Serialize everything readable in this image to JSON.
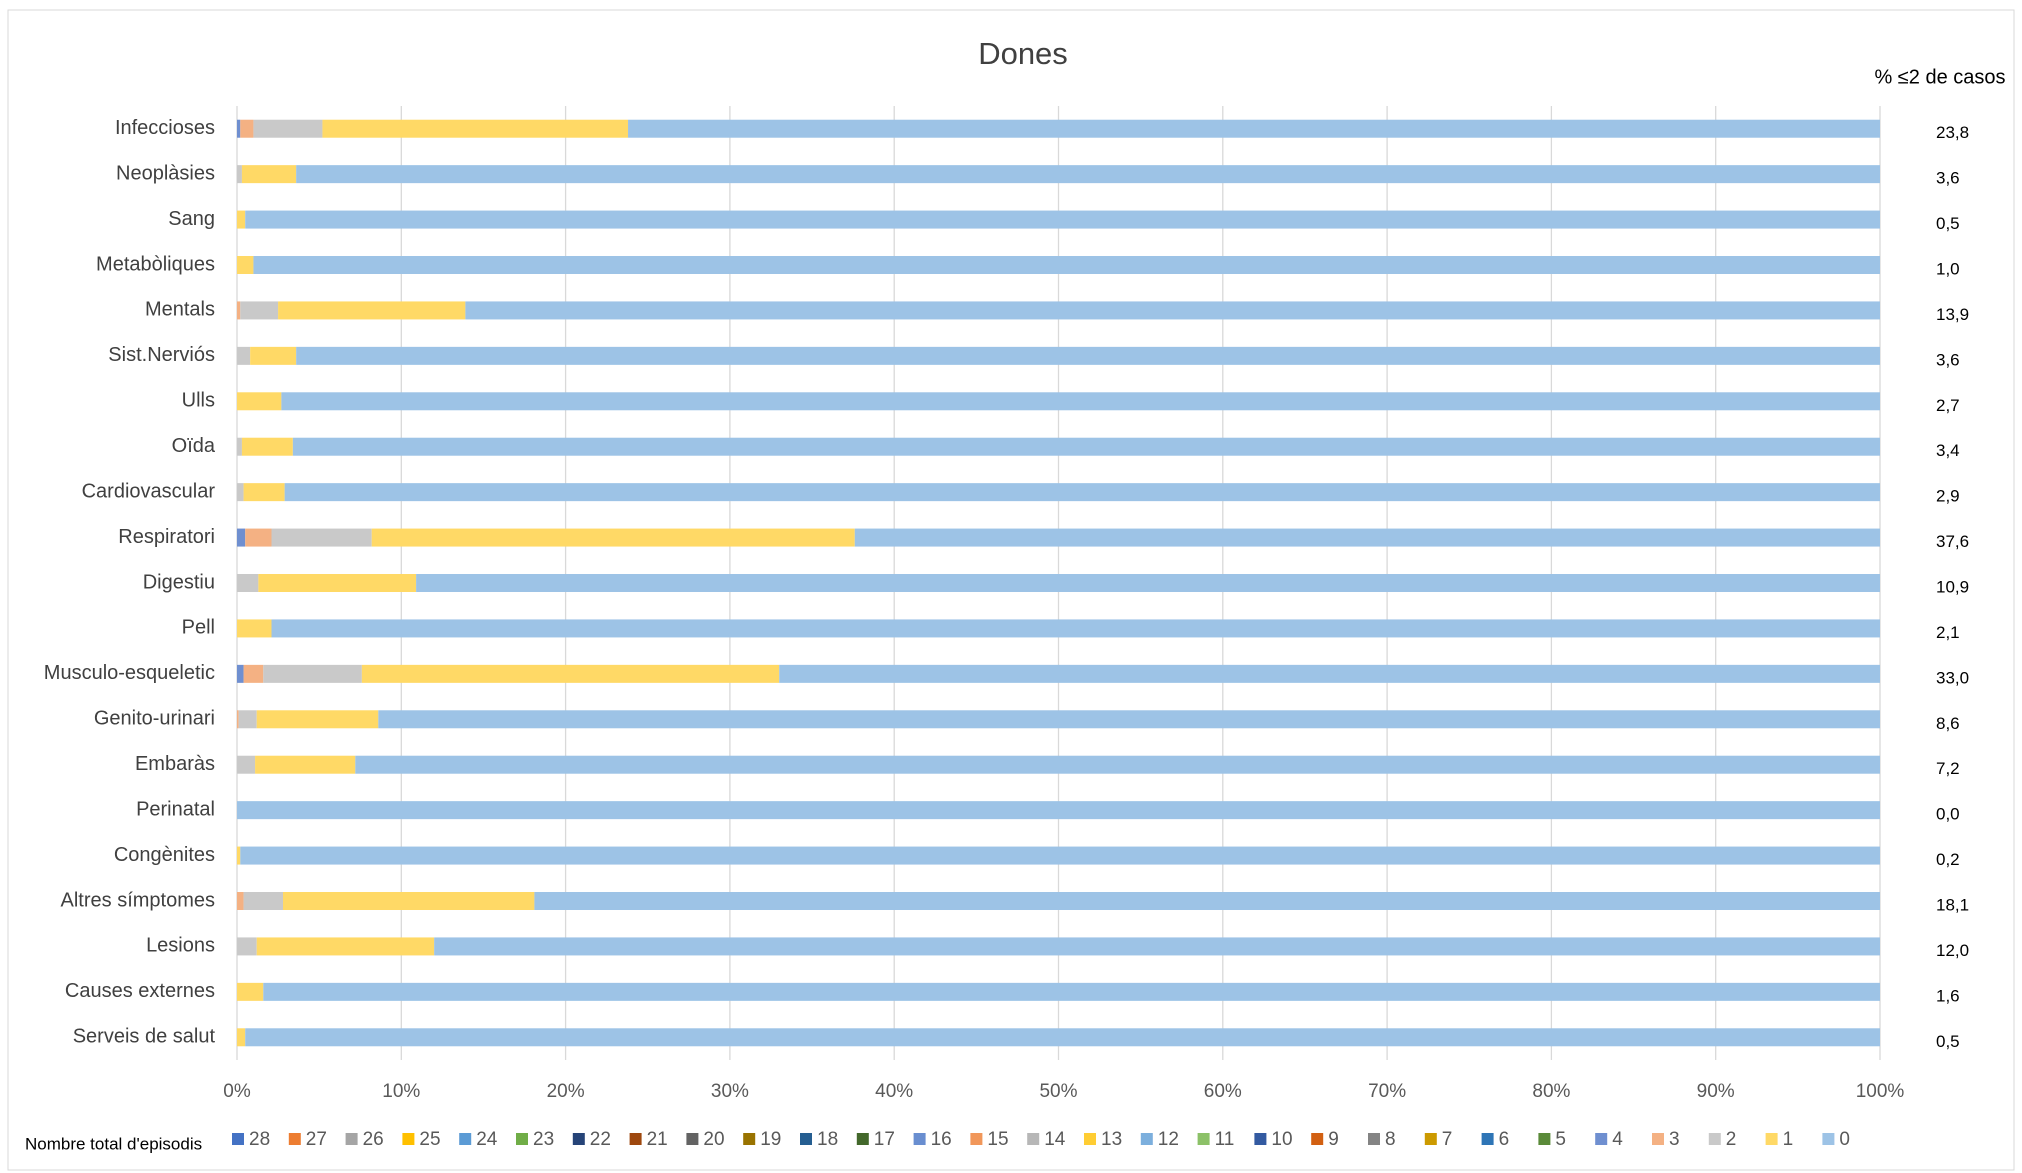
{
  "chart_data": {
    "type": "stacked_bar_horizontal",
    "title": "Dones",
    "categories": [
      "Infeccioses",
      "Neoplàsies",
      "Sang",
      "Metabòliques",
      "Mentals",
      "Sist.Nerviós",
      "Ulls",
      "Oïda",
      "Cardiovascular",
      "Respiratori",
      "Digestiu",
      "Pell",
      "Musculo-esqueletic",
      "Genito-urinari",
      "Embaràs",
      "Perinatal",
      "Congènites",
      "Altres símptomes",
      "Lesions",
      "Causes externes",
      "Serveis de salut"
    ],
    "legend_title": "Nombre total d'episodis",
    "xlim": [
      0,
      100
    ],
    "xticks": [
      {
        "value": 0,
        "label": "0%"
      },
      {
        "value": 10,
        "label": "10%"
      },
      {
        "value": 20,
        "label": "20%"
      },
      {
        "value": 30,
        "label": "30%"
      },
      {
        "value": 40,
        "label": "40%"
      },
      {
        "value": 50,
        "label": "50%"
      },
      {
        "value": 60,
        "label": "60%"
      },
      {
        "value": 70,
        "label": "70%"
      },
      {
        "value": 80,
        "label": "80%"
      },
      {
        "value": 90,
        "label": "90%"
      },
      {
        "value": 100,
        "label": "100%"
      }
    ],
    "grid": true,
    "series": [
      {
        "name": "28",
        "color": "#4472c4",
        "values": [
          0,
          0,
          0,
          0,
          0,
          0,
          0,
          0,
          0,
          0,
          0,
          0,
          0,
          0,
          0,
          0,
          0,
          0,
          0,
          0,
          0
        ]
      },
      {
        "name": "27",
        "color": "#ed7d31",
        "values": [
          0,
          0,
          0,
          0,
          0,
          0,
          0,
          0,
          0,
          0,
          0,
          0,
          0,
          0,
          0,
          0,
          0,
          0,
          0,
          0,
          0
        ]
      },
      {
        "name": "26",
        "color": "#a5a5a5",
        "values": [
          0,
          0,
          0,
          0,
          0,
          0,
          0,
          0,
          0,
          0,
          0,
          0,
          0,
          0,
          0,
          0,
          0,
          0,
          0,
          0,
          0
        ]
      },
      {
        "name": "25",
        "color": "#ffc000",
        "values": [
          0,
          0,
          0,
          0,
          0,
          0,
          0,
          0,
          0,
          0,
          0,
          0,
          0,
          0,
          0,
          0,
          0,
          0,
          0,
          0,
          0
        ]
      },
      {
        "name": "24",
        "color": "#5b9bd5",
        "values": [
          0,
          0,
          0,
          0,
          0,
          0,
          0,
          0,
          0,
          0,
          0,
          0,
          0,
          0,
          0,
          0,
          0,
          0,
          0,
          0,
          0
        ]
      },
      {
        "name": "23",
        "color": "#70ad47",
        "values": [
          0,
          0,
          0,
          0,
          0,
          0,
          0,
          0,
          0,
          0,
          0,
          0,
          0,
          0,
          0,
          0,
          0,
          0,
          0,
          0,
          0
        ]
      },
      {
        "name": "22",
        "color": "#264478",
        "values": [
          0,
          0,
          0,
          0,
          0,
          0,
          0,
          0,
          0,
          0,
          0,
          0,
          0,
          0,
          0,
          0,
          0,
          0,
          0,
          0,
          0
        ]
      },
      {
        "name": "21",
        "color": "#9e480e",
        "values": [
          0,
          0,
          0,
          0,
          0,
          0,
          0,
          0,
          0,
          0,
          0,
          0,
          0,
          0,
          0,
          0,
          0,
          0,
          0,
          0,
          0
        ]
      },
      {
        "name": "20",
        "color": "#636363",
        "values": [
          0,
          0,
          0,
          0,
          0,
          0,
          0,
          0,
          0,
          0,
          0,
          0,
          0,
          0,
          0,
          0,
          0,
          0,
          0,
          0,
          0
        ]
      },
      {
        "name": "19",
        "color": "#997300",
        "values": [
          0,
          0,
          0,
          0,
          0,
          0,
          0,
          0,
          0,
          0,
          0,
          0,
          0,
          0,
          0,
          0,
          0,
          0,
          0,
          0,
          0
        ]
      },
      {
        "name": "18",
        "color": "#255e91",
        "values": [
          0,
          0,
          0,
          0,
          0,
          0,
          0,
          0,
          0,
          0,
          0,
          0,
          0,
          0,
          0,
          0,
          0,
          0,
          0,
          0,
          0
        ]
      },
      {
        "name": "17",
        "color": "#43682b",
        "values": [
          0,
          0,
          0,
          0,
          0,
          0,
          0,
          0,
          0,
          0,
          0,
          0,
          0,
          0,
          0,
          0,
          0,
          0,
          0,
          0,
          0
        ]
      },
      {
        "name": "16",
        "color": "#698ed0",
        "values": [
          0,
          0,
          0,
          0,
          0,
          0,
          0,
          0,
          0,
          0,
          0,
          0,
          0,
          0,
          0,
          0,
          0,
          0,
          0,
          0,
          0
        ]
      },
      {
        "name": "15",
        "color": "#f1975a",
        "values": [
          0,
          0,
          0,
          0,
          0,
          0,
          0,
          0,
          0,
          0,
          0,
          0,
          0,
          0,
          0,
          0,
          0,
          0,
          0,
          0,
          0
        ]
      },
      {
        "name": "14",
        "color": "#b7b7b7",
        "values": [
          0,
          0,
          0,
          0,
          0,
          0,
          0,
          0,
          0,
          0,
          0,
          0,
          0,
          0,
          0,
          0,
          0,
          0,
          0,
          0,
          0
        ]
      },
      {
        "name": "13",
        "color": "#ffcd33",
        "values": [
          0,
          0,
          0,
          0,
          0,
          0,
          0,
          0,
          0,
          0,
          0,
          0,
          0,
          0,
          0,
          0,
          0,
          0,
          0,
          0,
          0
        ]
      },
      {
        "name": "12",
        "color": "#7cafdd",
        "values": [
          0,
          0,
          0,
          0,
          0,
          0,
          0,
          0,
          0,
          0,
          0,
          0,
          0,
          0,
          0,
          0,
          0,
          0,
          0,
          0,
          0
        ]
      },
      {
        "name": "11",
        "color": "#8cc168",
        "values": [
          0,
          0,
          0,
          0,
          0,
          0,
          0,
          0,
          0,
          0,
          0,
          0,
          0,
          0,
          0,
          0,
          0,
          0,
          0,
          0,
          0
        ]
      },
      {
        "name": "10",
        "color": "#335aa1",
        "values": [
          0,
          0,
          0,
          0,
          0,
          0,
          0,
          0,
          0,
          0,
          0,
          0,
          0,
          0,
          0,
          0,
          0,
          0,
          0,
          0,
          0
        ]
      },
      {
        "name": "9",
        "color": "#d26012",
        "values": [
          0,
          0,
          0,
          0,
          0,
          0,
          0,
          0,
          0,
          0,
          0,
          0,
          0,
          0,
          0,
          0,
          0,
          0,
          0,
          0,
          0
        ]
      },
      {
        "name": "8",
        "color": "#848484",
        "values": [
          0,
          0,
          0,
          0,
          0,
          0,
          0,
          0,
          0,
          0,
          0,
          0,
          0,
          0,
          0,
          0,
          0,
          0,
          0,
          0,
          0
        ]
      },
      {
        "name": "7",
        "color": "#cc9a00",
        "values": [
          0,
          0,
          0,
          0,
          0,
          0,
          0,
          0,
          0,
          0,
          0,
          0,
          0,
          0,
          0,
          0,
          0,
          0,
          0,
          0,
          0
        ]
      },
      {
        "name": "6",
        "color": "#2e75b6",
        "values": [
          0,
          0,
          0,
          0,
          0,
          0,
          0,
          0,
          0,
          0,
          0,
          0,
          0,
          0,
          0,
          0,
          0,
          0,
          0,
          0,
          0
        ]
      },
      {
        "name": "5",
        "color": "#5a8a39",
        "values": [
          0,
          0,
          0,
          0,
          0,
          0,
          0,
          0,
          0,
          0,
          0,
          0,
          0,
          0,
          0,
          0,
          0,
          0,
          0,
          0,
          0
        ]
      },
      {
        "name": "4",
        "color": "#6f8fd0",
        "values": [
          0.2,
          0,
          0,
          0,
          0,
          0,
          0,
          0,
          0,
          0.5,
          0,
          0,
          0.4,
          0,
          0,
          0,
          0,
          0,
          0,
          0,
          0
        ]
      },
      {
        "name": "3",
        "color": "#f4b183",
        "values": [
          0.8,
          0,
          0,
          0,
          0.2,
          0,
          0,
          0,
          0,
          1.6,
          0,
          0,
          1.2,
          0.1,
          0,
          0,
          0,
          0.4,
          0,
          0,
          0
        ]
      },
      {
        "name": "2",
        "color": "#c9c9c9",
        "values": [
          4.2,
          0.3,
          0,
          0,
          2.3,
          0.8,
          0,
          0.3,
          0.4,
          6.1,
          1.3,
          0,
          6.0,
          1.1,
          1.1,
          0,
          0,
          2.4,
          1.2,
          0,
          0
        ]
      },
      {
        "name": "1",
        "color": "#ffd966",
        "values": [
          18.6,
          3.3,
          0.5,
          1.0,
          11.4,
          2.8,
          2.7,
          3.1,
          2.5,
          29.4,
          9.6,
          2.1,
          25.4,
          7.4,
          6.1,
          0,
          0.2,
          15.3,
          10.8,
          1.6,
          0.5
        ]
      },
      {
        "name": "0",
        "color": "#9dc3e6",
        "values": [
          76.2,
          96.4,
          99.5,
          99.0,
          86.1,
          96.4,
          97.3,
          96.6,
          97.1,
          62.4,
          89.1,
          97.9,
          67.0,
          91.4,
          92.8,
          100,
          99.8,
          81.9,
          88.0,
          98.4,
          99.5
        ]
      }
    ],
    "right_column": {
      "title": "% ≤2 de casos",
      "values": [
        23.8,
        3.6,
        0.5,
        1.0,
        13.9,
        3.6,
        2.7,
        3.4,
        2.9,
        37.6,
        10.9,
        2.1,
        33.0,
        8.6,
        7.2,
        0.0,
        0.2,
        18.1,
        12.0,
        1.6,
        0.5
      ],
      "value_labels": [
        "23,8",
        "3,6",
        "0,5",
        "1,0",
        "13,9",
        "3,6",
        "2,7",
        "3,4",
        "2,9",
        "37,6",
        "10,9",
        "2,1",
        "33,0",
        "8,6",
        "7,2",
        "0,0",
        "0,2",
        "18,1",
        "12,0",
        "1,6",
        "0,5"
      ]
    }
  }
}
